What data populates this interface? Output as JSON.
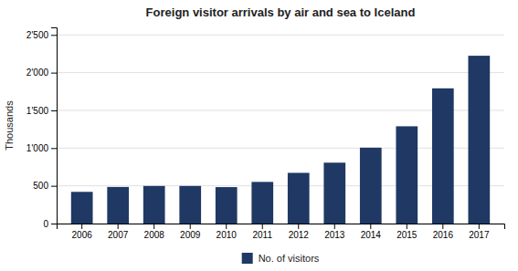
{
  "chart_data": {
    "type": "bar",
    "title": "Foreign visitor arrivals by air and sea to Iceland",
    "ylabel": "Thousands",
    "categories": [
      "2006",
      "2007",
      "2008",
      "2009",
      "2010",
      "2011",
      "2012",
      "2013",
      "2014",
      "2015",
      "2016",
      "2017"
    ],
    "series": [
      {
        "name": "No. of visitors",
        "color": "#1F3864",
        "values": [
          420,
          485,
          498,
          498,
          483,
          552,
          672,
          807,
          1006,
          1289,
          1792,
          2224
        ]
      }
    ],
    "ylim": [
      0,
      2600
    ],
    "yticks": [
      0,
      500,
      {
        "value": 1000,
        "label": "1'000"
      },
      {
        "value": 1500,
        "label": "1'500"
      },
      {
        "value": 2000,
        "label": "2'000"
      },
      {
        "value": 2500,
        "label": "2'500"
      }
    ],
    "grid": true,
    "legend": "bottom"
  }
}
